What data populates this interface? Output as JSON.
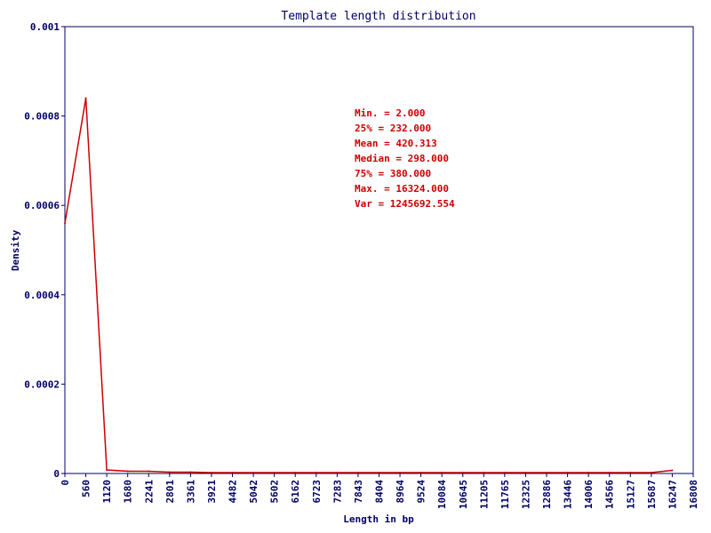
{
  "chart_data": {
    "type": "line",
    "title": "Template length distribution",
    "xlabel": "Length in bp",
    "ylabel": "Density",
    "xlim": [
      0,
      16808
    ],
    "ylim": [
      0,
      0.001
    ],
    "x_ticks": [
      "0",
      "560",
      "1120",
      "1680",
      "2241",
      "2801",
      "3361",
      "3921",
      "4482",
      "5042",
      "5602",
      "6162",
      "6723",
      "7283",
      "7843",
      "8404",
      "8964",
      "9524",
      "10084",
      "10645",
      "11205",
      "11765",
      "12325",
      "12886",
      "13446",
      "14006",
      "14566",
      "15127",
      "15687",
      "16247",
      "16808"
    ],
    "y_ticks": [
      "0",
      "0.0002",
      "0.0004",
      "0.0006",
      "0.0008",
      "0.001"
    ],
    "grid": false,
    "line_color": "#cc0000",
    "axis_color": "#000066",
    "series": [
      {
        "x": [
          0,
          560,
          1120,
          1680,
          2241,
          2801,
          3361,
          3921,
          4482,
          5042,
          5602,
          6162,
          6723,
          7283,
          7843,
          8404,
          8964,
          9524,
          10084,
          10645,
          11205,
          11765,
          12325,
          12886,
          13446,
          14006,
          14566,
          15127,
          15687,
          16247
        ],
        "y": [
          0.00056,
          0.00084,
          8e-06,
          5e-06,
          5e-06,
          3e-06,
          3e-06,
          2e-06,
          2e-06,
          2e-06,
          2e-06,
          2e-06,
          2e-06,
          2e-06,
          2e-06,
          2e-06,
          2e-06,
          2e-06,
          2e-06,
          2e-06,
          2e-06,
          2e-06,
          2e-06,
          2e-06,
          2e-06,
          2e-06,
          2e-06,
          2e-06,
          2e-06,
          7e-06
        ]
      }
    ],
    "annotations": [
      "Min. = 2.000",
      "25% = 232.000",
      "Mean = 420.313",
      "Median = 298.000",
      "75% = 380.000",
      "Max. = 16324.000",
      "Var = 1245692.554"
    ]
  }
}
